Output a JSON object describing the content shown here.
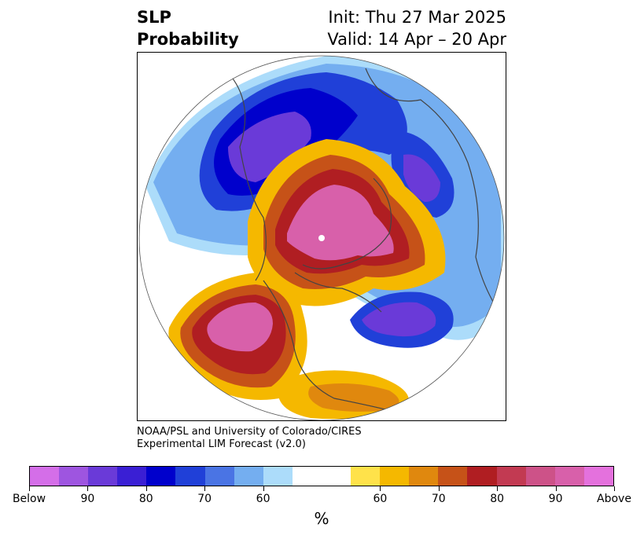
{
  "header": {
    "title_line1": "SLP",
    "title_line2": "Probability",
    "init": "Init: Thu 27 Mar 2025",
    "valid": "Valid: 14 Apr – 20 Apr"
  },
  "credit": {
    "line1": "NOAA/PSL and University of Colorado/CIRES",
    "line2": "Experimental LIM Forecast (v2.0)"
  },
  "colorbar": {
    "colors": [
      "#d46ee8",
      "#9e55e0",
      "#6a3ad8",
      "#3a1fd4",
      "#0000cc",
      "#2040d8",
      "#4a74e4",
      "#74aef0",
      "#acdcfa",
      "#ffffff",
      "#ffffff",
      "#ffe24a",
      "#f5b800",
      "#e0880e",
      "#c65218",
      "#b01e22",
      "#c23a52",
      "#cd5288",
      "#d860aa",
      "#e471dd"
    ],
    "labels": [
      "Below",
      "90",
      "80",
      "70",
      "60",
      "60",
      "70",
      "80",
      "90",
      "Above"
    ],
    "unit": "%"
  },
  "map": {
    "region": "Northern Hemisphere polar stereographic",
    "colors": {
      "strong_below": "#0000cc",
      "below": "#6a3ad8",
      "weak_below": "#74aef0",
      "weak_above": "#f5b800",
      "above": "#b01e22",
      "strong_above": "#d860aa"
    }
  }
}
